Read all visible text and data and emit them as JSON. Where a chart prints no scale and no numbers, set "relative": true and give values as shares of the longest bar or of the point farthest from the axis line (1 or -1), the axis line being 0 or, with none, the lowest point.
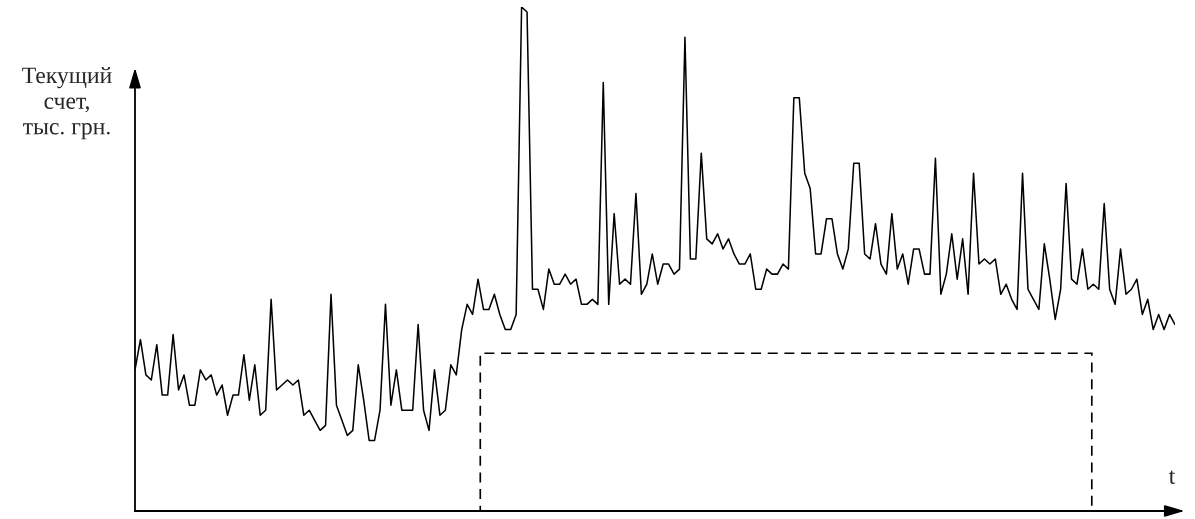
{
  "chart_data": {
    "type": "line",
    "relative": true,
    "ylabel": "Текущий\nсчет,\nтыс. грн.",
    "xlabel": "t",
    "categories": [
      null,
      null,
      null,
      null,
      null,
      null,
      null,
      null,
      null,
      null,
      null,
      null,
      null,
      null,
      null,
      null,
      null,
      null,
      null,
      null,
      null,
      null,
      null,
      null,
      null,
      null,
      null,
      null,
      null,
      null,
      null,
      null,
      null,
      null,
      null,
      null,
      null,
      null,
      null,
      null,
      null,
      null,
      null,
      null,
      null,
      null,
      null,
      null,
      null,
      null,
      null,
      null,
      null,
      null,
      null,
      null,
      null,
      null,
      null,
      null,
      null,
      null,
      null,
      null,
      null,
      null,
      null,
      null,
      null,
      null,
      null,
      null,
      null,
      null,
      null,
      null,
      null,
      null,
      null,
      null,
      null,
      null,
      null,
      null,
      null,
      null,
      null,
      null,
      null,
      null,
      null,
      null,
      null,
      null,
      null,
      null,
      null,
      null,
      null,
      null,
      null,
      null,
      null,
      null,
      null,
      null,
      null,
      null,
      null,
      null,
      null,
      null,
      null,
      null,
      null,
      null,
      null,
      null,
      null,
      null,
      null,
      null,
      null,
      null,
      null,
      null,
      null,
      null,
      null,
      null,
      null,
      null,
      null,
      null,
      null,
      null,
      null,
      null,
      null,
      null,
      null,
      null,
      null,
      null,
      null,
      null,
      null,
      null,
      null,
      null,
      null,
      null,
      null,
      null,
      null,
      null,
      null,
      null,
      null,
      null,
      null,
      null,
      null,
      null,
      null,
      null,
      null,
      null,
      null,
      null,
      null,
      null,
      null,
      null,
      null,
      null,
      null,
      null,
      null,
      null,
      null,
      null,
      null,
      null,
      null,
      null,
      null,
      null,
      null,
      null,
      null,
      null
    ],
    "series": [
      {
        "color": "#000000",
        "values": [
          0.28,
          0.34,
          0.27,
          0.26,
          0.33,
          0.23,
          0.23,
          0.35,
          0.24,
          0.27,
          0.21,
          0.21,
          0.28,
          0.26,
          0.27,
          0.23,
          0.25,
          0.19,
          0.23,
          0.23,
          0.31,
          0.22,
          0.29,
          0.19,
          0.2,
          0.42,
          0.24,
          0.25,
          0.26,
          0.25,
          0.26,
          0.19,
          0.2,
          0.18,
          0.16,
          0.17,
          0.43,
          0.21,
          0.18,
          0.15,
          0.16,
          0.29,
          0.22,
          0.14,
          0.14,
          0.2,
          0.41,
          0.21,
          0.28,
          0.2,
          0.2,
          0.2,
          0.37,
          0.2,
          0.16,
          0.28,
          0.19,
          0.2,
          0.29,
          0.27,
          0.36,
          0.41,
          0.39,
          0.46,
          0.4,
          0.4,
          0.43,
          0.39,
          0.36,
          0.36,
          0.39,
          1.0,
          0.99,
          0.44,
          0.44,
          0.4,
          0.48,
          0.45,
          0.45,
          0.47,
          0.45,
          0.46,
          0.41,
          0.41,
          0.42,
          0.41,
          0.85,
          0.41,
          0.59,
          0.45,
          0.46,
          0.45,
          0.63,
          0.43,
          0.45,
          0.51,
          0.45,
          0.49,
          0.49,
          0.47,
          0.48,
          0.94,
          0.5,
          0.5,
          0.71,
          0.54,
          0.53,
          0.55,
          0.52,
          0.54,
          0.51,
          0.49,
          0.49,
          0.51,
          0.44,
          0.44,
          0.48,
          0.47,
          0.47,
          0.49,
          0.48,
          0.82,
          0.82,
          0.67,
          0.64,
          0.51,
          0.51,
          0.58,
          0.58,
          0.51,
          0.48,
          0.52,
          0.69,
          0.69,
          0.51,
          0.5,
          0.57,
          0.49,
          0.47,
          0.59,
          0.48,
          0.51,
          0.45,
          0.52,
          0.52,
          0.47,
          0.47,
          0.7,
          0.43,
          0.47,
          0.55,
          0.46,
          0.54,
          0.43,
          0.67,
          0.49,
          0.5,
          0.49,
          0.5,
          0.43,
          0.45,
          0.42,
          0.4,
          0.67,
          0.44,
          0.42,
          0.4,
          0.53,
          0.46,
          0.38,
          0.44,
          0.65,
          0.46,
          0.45,
          0.52,
          0.44,
          0.45,
          0.44,
          0.61,
          0.44,
          0.41,
          0.52,
          0.43,
          0.44,
          0.46,
          0.39,
          0.42,
          0.36,
          0.39,
          0.36,
          0.39,
          0.37
        ]
      }
    ]
  }
}
